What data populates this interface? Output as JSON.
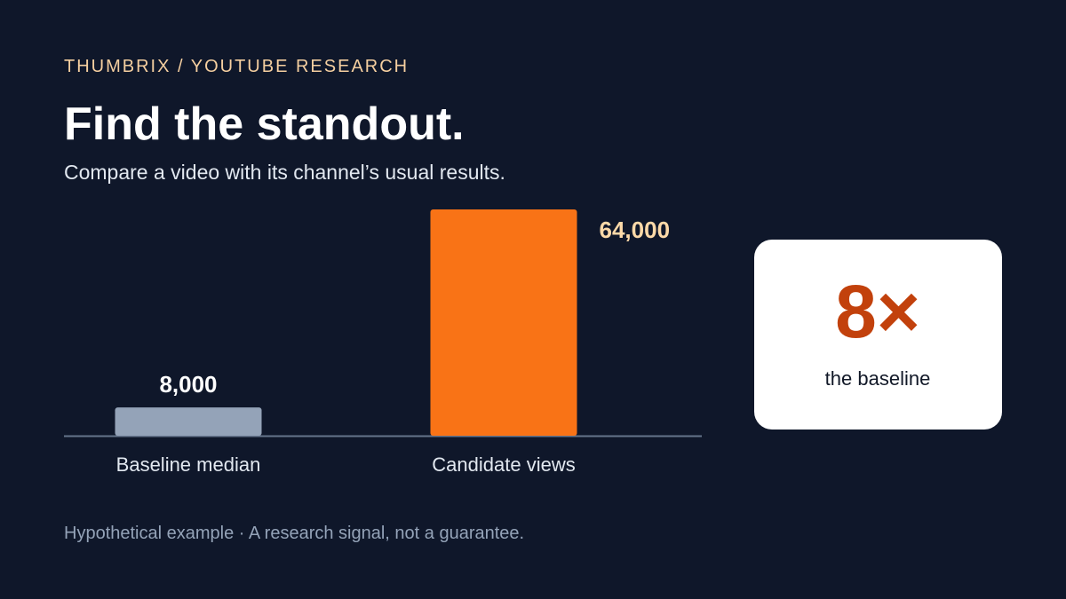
{
  "chart_data": {
    "type": "bar",
    "kicker": "THUMBRIX / YOUTUBE RESEARCH",
    "title": "Find the standout.",
    "subtitle": "Compare a video with its channel’s usual results.",
    "categories": [
      "Baseline median",
      "Candidate views"
    ],
    "values": [
      8000,
      64000
    ],
    "value_labels": [
      "8,000",
      "64,000"
    ],
    "colors": [
      "#94a3b8",
      "#f97316"
    ],
    "callout": {
      "value": "8×",
      "label": "the baseline"
    },
    "note": "Hypothetical example · A research signal, not a guarantee."
  }
}
